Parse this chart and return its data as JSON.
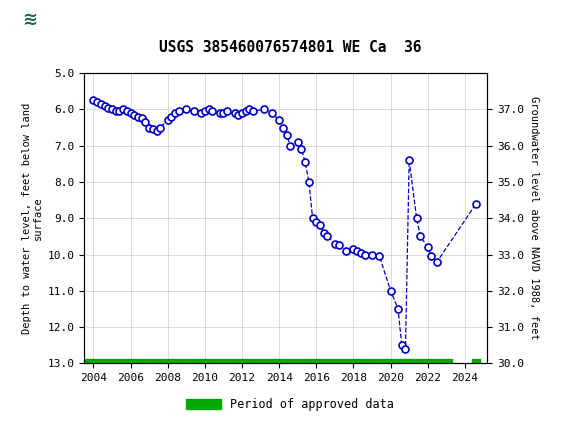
{
  "title": "USGS 385460076574801 WE Ca  36",
  "ylabel_left": "Depth to water level, feet below land\nsurface",
  "ylabel_right": "Groundwater level above NAVD 1988, feet",
  "xlim": [
    2003.5,
    2025.2
  ],
  "ylim_left": [
    5.0,
    13.0
  ],
  "ylim_right": [
    30.0,
    38.0
  ],
  "yticks_left": [
    5.0,
    6.0,
    7.0,
    8.0,
    9.0,
    10.0,
    11.0,
    12.0,
    13.0
  ],
  "yticks_right": [
    30.0,
    31.0,
    32.0,
    33.0,
    34.0,
    35.0,
    36.0,
    37.0
  ],
  "xticks": [
    2004,
    2006,
    2008,
    2010,
    2012,
    2014,
    2016,
    2018,
    2020,
    2022,
    2024
  ],
  "line_color": "#0000CC",
  "marker_color": "#0000CC",
  "approved_color": "#00AA00",
  "header_color": "#1a6b3c",
  "background_color": "#ffffff",
  "plot_bg_color": "#ffffff",
  "grid_color": "#cccccc",
  "data_x": [
    2004.0,
    2004.2,
    2004.4,
    2004.6,
    2004.8,
    2005.0,
    2005.2,
    2005.4,
    2005.6,
    2005.8,
    2006.0,
    2006.2,
    2006.4,
    2006.6,
    2006.8,
    2007.0,
    2007.2,
    2007.4,
    2007.6,
    2008.0,
    2008.2,
    2008.4,
    2008.6,
    2009.0,
    2009.4,
    2009.8,
    2010.0,
    2010.2,
    2010.4,
    2010.8,
    2011.0,
    2011.2,
    2011.6,
    2011.8,
    2012.0,
    2012.2,
    2012.4,
    2012.6,
    2013.2,
    2013.6,
    2014.0,
    2014.2,
    2014.4,
    2014.6,
    2015.0,
    2015.2,
    2015.4,
    2015.6,
    2015.8,
    2016.0,
    2016.2,
    2016.4,
    2016.6,
    2017.0,
    2017.2,
    2017.6,
    2018.0,
    2018.2,
    2018.4,
    2018.6,
    2019.0,
    2019.4,
    2020.0,
    2020.4,
    2020.6,
    2020.8,
    2021.0,
    2021.4,
    2021.6,
    2022.0,
    2022.2,
    2022.5,
    2024.6
  ],
  "data_y": [
    5.75,
    5.8,
    5.85,
    5.9,
    5.95,
    6.0,
    6.05,
    6.05,
    6.0,
    6.05,
    6.1,
    6.15,
    6.2,
    6.25,
    6.35,
    6.5,
    6.55,
    6.6,
    6.5,
    6.3,
    6.2,
    6.1,
    6.05,
    6.0,
    6.05,
    6.1,
    6.05,
    6.0,
    6.05,
    6.1,
    6.1,
    6.05,
    6.1,
    6.15,
    6.1,
    6.05,
    6.0,
    6.05,
    6.0,
    6.1,
    6.3,
    6.5,
    6.7,
    7.0,
    6.9,
    7.1,
    7.45,
    8.0,
    9.0,
    9.1,
    9.2,
    9.4,
    9.5,
    9.7,
    9.75,
    9.9,
    9.85,
    9.9,
    9.95,
    10.0,
    10.0,
    10.05,
    11.0,
    11.5,
    12.5,
    12.6,
    7.4,
    9.0,
    9.5,
    9.8,
    10.05,
    10.2,
    8.6
  ],
  "approved_bar_xmin": 2003.5,
  "approved_bar_xmax": 2023.3,
  "approved_bar_xmin2": 2024.4,
  "approved_bar_xmax2": 2024.8,
  "approved_bar_y": 13.0,
  "legend_label": "Period of approved data"
}
